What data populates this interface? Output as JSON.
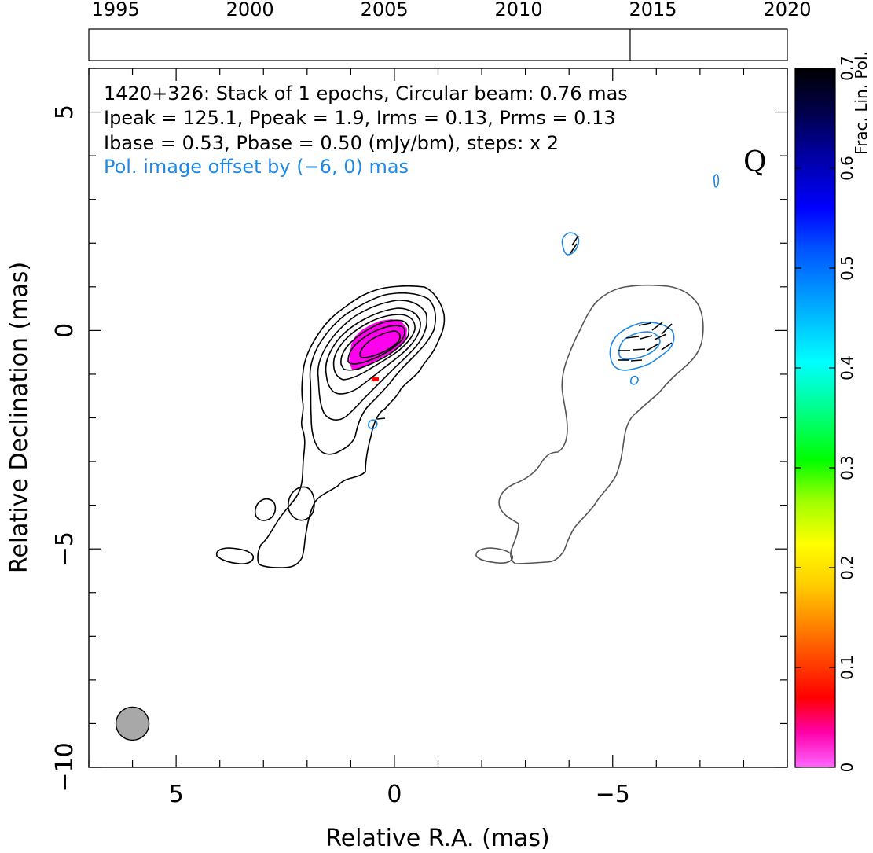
{
  "chart_data": {
    "type": "contour",
    "source_name": "1420+326",
    "annotations": {
      "line1": "1420+326: Stack of 1 epochs, Circular beam: 0.76 mas",
      "line2": "Ipeak = 125.1, Ppeak = 1.9, Irms = 0.13, Prms = 0.13",
      "line3": "Ibase = 0.53, Pbase = 0.50 (mJy/bm), steps: x 2",
      "line4": "Pol. image offset by (−6, 0) mas",
      "quality_letter": "Q"
    },
    "xlabel": "Relative R.A. (mas)",
    "ylabel": "Relative Declination (mas)",
    "xlim": [
      7,
      -9
    ],
    "ylim": [
      -10,
      6
    ],
    "x_ticks": [
      {
        "value": 5,
        "label": "5"
      },
      {
        "value": 0,
        "label": "0"
      },
      {
        "value": -5,
        "label": "−5"
      }
    ],
    "y_ticks": [
      {
        "value": 5,
        "label": "5"
      },
      {
        "value": 0,
        "label": "0"
      },
      {
        "value": -5,
        "label": "−5"
      },
      {
        "value": -10,
        "label": "−10"
      }
    ],
    "timeline": {
      "years": [
        "1995",
        "2000",
        "2005",
        "2010",
        "2015",
        "2020"
      ],
      "year_range": [
        1994,
        2020
      ],
      "epoch_markers": [
        2014.15
      ]
    },
    "colorbar": {
      "label": "Frac. Lin. Pol.",
      "range": [
        0,
        0.7
      ],
      "ticks": [
        "0",
        "0.1",
        "0.2",
        "0.3",
        "0.4",
        "0.5",
        "0.6",
        "0.7"
      ]
    },
    "beam": {
      "x": 6,
      "y": -9,
      "diameter_mas": 0.76,
      "color": "#a8a8a8"
    },
    "colors": {
      "total_intensity_contours": "#000000",
      "pol_image_contours": "#555555",
      "pol_contours": "#1e88e5",
      "frac_pol_fill": "#ff00ff",
      "text_blue": "#1e88e5"
    }
  }
}
